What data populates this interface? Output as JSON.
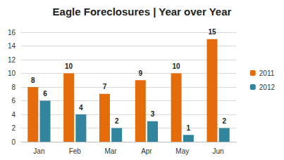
{
  "chart_data": {
    "type": "bar",
    "title": "Eagle Foreclosures | Year over Year",
    "categories": [
      "Jan",
      "Feb",
      "Mar",
      "Apr",
      "May",
      "Jun"
    ],
    "series": [
      {
        "name": "2011",
        "color": "#e46c0a",
        "values": [
          8,
          10,
          7,
          9,
          10,
          15
        ]
      },
      {
        "name": "2012",
        "color": "#31859c",
        "values": [
          6,
          4,
          2,
          3,
          1,
          2
        ]
      }
    ],
    "ylim": [
      0,
      16
    ],
    "yticks": [
      0,
      2,
      4,
      6,
      8,
      10,
      12,
      14,
      16
    ],
    "grid": true,
    "legend": "right",
    "data_labels": true
  }
}
